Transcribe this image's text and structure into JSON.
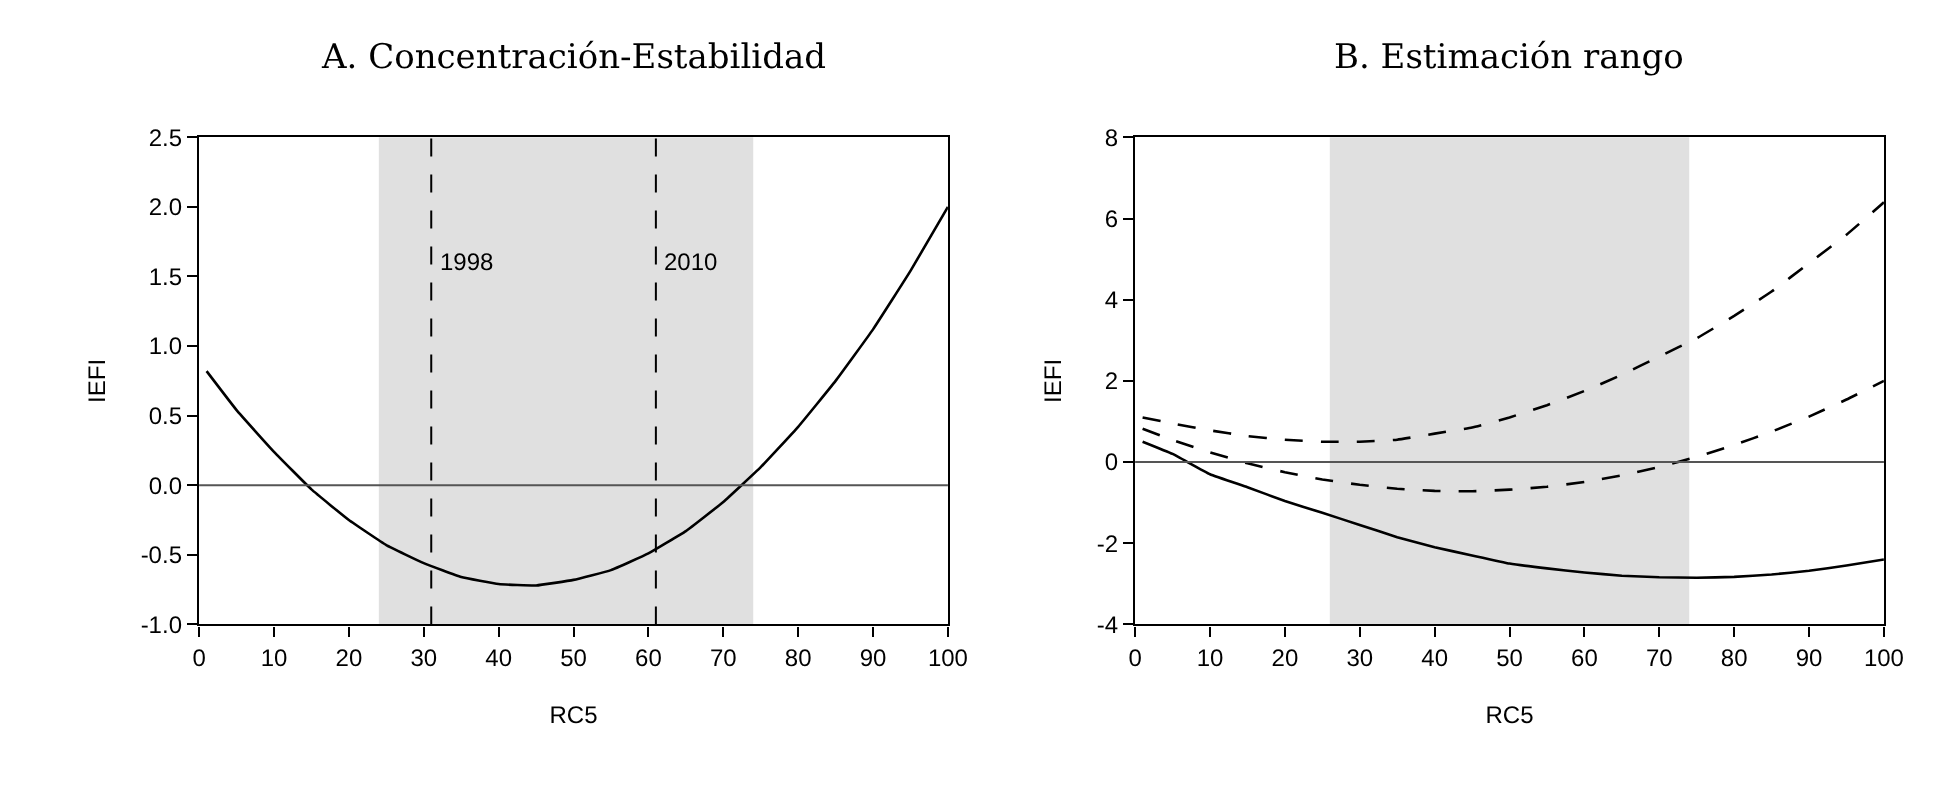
{
  "chart_data": [
    {
      "type": "line",
      "title": "A. Concentración-Estabilidad",
      "xlabel": "RC5",
      "ylabel": "IEFI",
      "x": [
        1,
        5,
        10,
        15,
        20,
        25,
        30,
        35,
        40,
        45,
        50,
        55,
        60,
        65,
        70,
        75,
        80,
        85,
        90,
        95,
        100
      ],
      "series": [
        {
          "color": "#000000",
          "line_style": "solid",
          "values": [
            0.82,
            0.54,
            0.24,
            -0.03,
            -0.25,
            -0.43,
            -0.56,
            -0.66,
            -0.71,
            -0.72,
            -0.68,
            -0.61,
            -0.49,
            -0.33,
            -0.12,
            0.13,
            0.42,
            0.75,
            1.12,
            1.54,
            2.0
          ]
        }
      ],
      "xlim": [
        0,
        100
      ],
      "xticks": [
        0,
        10,
        20,
        30,
        40,
        50,
        60,
        70,
        80,
        90,
        100
      ],
      "ylim": [
        -1,
        2.5
      ],
      "yticks": [
        {
          "value": -1,
          "label": "-1.0"
        },
        -0.5,
        {
          "value": 0,
          "label": "0.0"
        },
        0.5,
        {
          "value": 1,
          "label": "1.0"
        },
        1.5,
        {
          "value": 2,
          "label": "2.0"
        },
        2.5
      ],
      "bands": [
        {
          "axis": "x",
          "from": 24,
          "to": 74,
          "color": "#e0e0e0"
        }
      ],
      "annotations": [
        {
          "text": "1998",
          "x": 31,
          "y": 1.6
        },
        {
          "text": "2010",
          "x": 61,
          "y": 1.6
        }
      ],
      "ref_lines": [
        {
          "axis": "x",
          "value": 31,
          "line_style": "dashed",
          "color": "#000000"
        },
        {
          "axis": "x",
          "value": 61,
          "line_style": "dashed",
          "color": "#000000"
        },
        {
          "axis": "y",
          "value": 0,
          "line_style": "solid",
          "color": "#555555"
        }
      ],
      "grid": false
    },
    {
      "type": "line",
      "title": "B. Estimación rango",
      "xlabel": "RC5",
      "ylabel": "IEFI",
      "x": [
        1,
        5,
        10,
        15,
        20,
        25,
        30,
        35,
        40,
        45,
        50,
        55,
        60,
        65,
        70,
        75,
        80,
        85,
        90,
        95,
        100
      ],
      "series": [
        {
          "color": "#000000",
          "line_style": "dashed",
          "values": [
            1.1,
            0.95,
            0.78,
            0.64,
            0.55,
            0.5,
            0.5,
            0.55,
            0.7,
            0.85,
            1.1,
            1.4,
            1.75,
            2.15,
            2.6,
            3.05,
            3.6,
            4.2,
            4.9,
            5.6,
            6.4
          ]
        },
        {
          "color": "#000000",
          "line_style": "dashed",
          "values": [
            0.82,
            0.54,
            0.24,
            -0.03,
            -0.25,
            -0.43,
            -0.56,
            -0.66,
            -0.71,
            -0.72,
            -0.68,
            -0.61,
            -0.49,
            -0.33,
            -0.12,
            0.13,
            0.42,
            0.75,
            1.12,
            1.54,
            2.0
          ]
        },
        {
          "color": "#000000",
          "line_style": "solid",
          "values": [
            0.5,
            0.2,
            -0.3,
            -0.62,
            -0.96,
            -1.25,
            -1.55,
            -1.85,
            -2.1,
            -2.3,
            -2.5,
            -2.62,
            -2.72,
            -2.8,
            -2.84,
            -2.85,
            -2.83,
            -2.77,
            -2.68,
            -2.55,
            -2.4
          ]
        }
      ],
      "xlim": [
        0,
        100
      ],
      "xticks": [
        0,
        10,
        20,
        30,
        40,
        50,
        60,
        70,
        80,
        90,
        100
      ],
      "ylim": [
        -4,
        8
      ],
      "yticks": [
        -4,
        -2,
        0,
        2,
        4,
        6,
        8
      ],
      "bands": [
        {
          "axis": "x",
          "from": 26,
          "to": 74,
          "color": "#e0e0e0"
        }
      ],
      "ref_lines": [
        {
          "axis": "y",
          "value": 0,
          "line_style": "solid",
          "color": "#555555"
        }
      ],
      "grid": false
    }
  ]
}
